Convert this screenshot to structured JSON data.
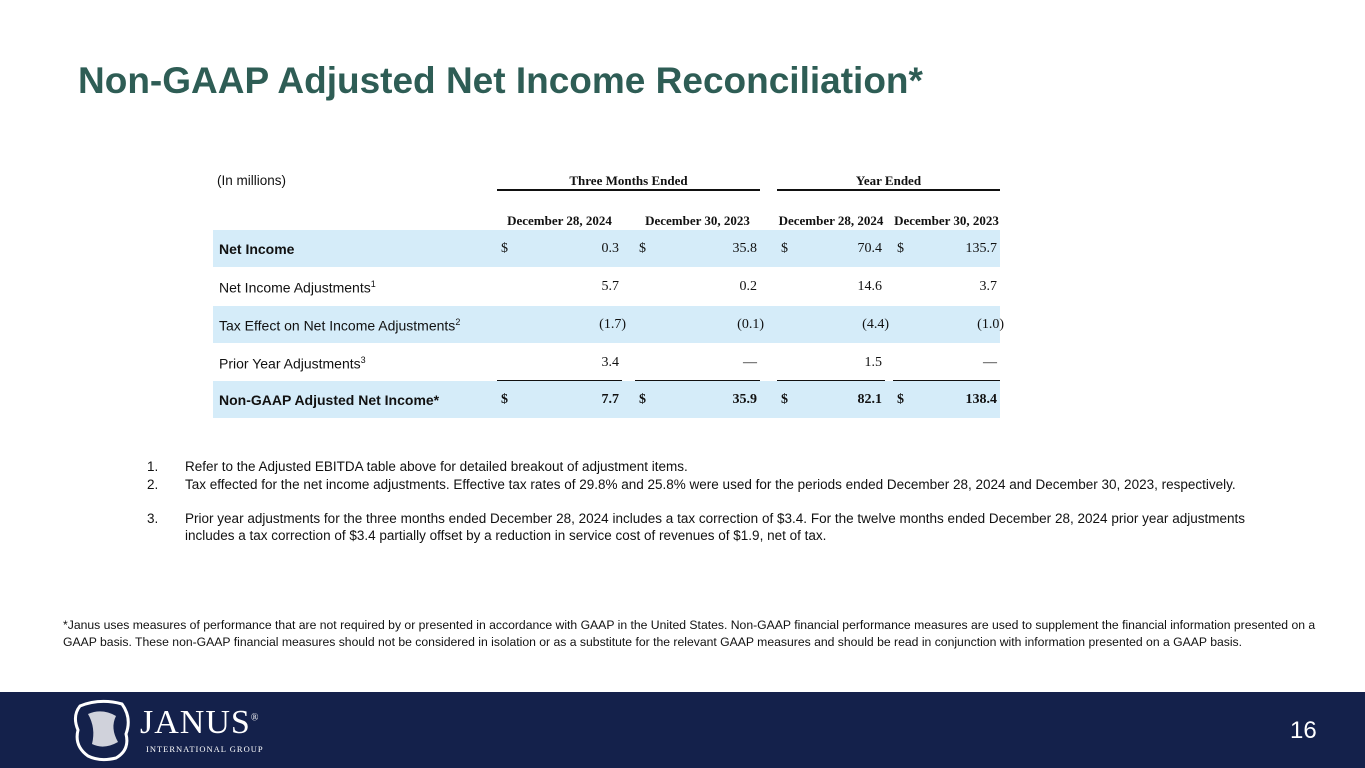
{
  "title": "Non-GAAP Adjusted Net Income Reconciliation*",
  "table": {
    "unit_label": "(In millions)",
    "groups": [
      "Three Months Ended",
      "Year Ended"
    ],
    "columns": [
      "December 28, 2024",
      "December 30, 2023",
      "December 28, 2024",
      "December 30, 2023"
    ],
    "rows": [
      {
        "label": "Net Income",
        "cells": [
          {
            "currency": "$",
            "value": "0.3"
          },
          {
            "currency": "$",
            "value": "35.8"
          },
          {
            "currency": "$",
            "value": "70.4"
          },
          {
            "currency": "$",
            "value": "135.7"
          }
        ]
      },
      {
        "label": "Net Income Adjustments",
        "note": "1",
        "cells": [
          {
            "value": "5.7"
          },
          {
            "value": "0.2"
          },
          {
            "value": "14.6"
          },
          {
            "value": "3.7"
          }
        ]
      },
      {
        "label": "Tax Effect on Net Income Adjustments",
        "note": "2",
        "cells": [
          {
            "value": "(1.7)"
          },
          {
            "value": "(0.1)"
          },
          {
            "value": "(4.4)"
          },
          {
            "value": "(1.0)"
          }
        ]
      },
      {
        "label": "Prior Year Adjustments",
        "note": "3",
        "cells": [
          {
            "value": "3.4"
          },
          {
            "value": "—"
          },
          {
            "value": "1.5"
          },
          {
            "value": "—"
          }
        ]
      },
      {
        "label": "Non-GAAP Adjusted Net Income*",
        "cells": [
          {
            "currency": "$",
            "value": "7.7"
          },
          {
            "currency": "$",
            "value": "35.9"
          },
          {
            "currency": "$",
            "value": "82.1"
          },
          {
            "currency": "$",
            "value": "138.4"
          }
        ]
      }
    ]
  },
  "footnotes": [
    {
      "marker": "1.",
      "text": "Refer to the Adjusted EBITDA table above for detailed breakout of adjustment items."
    },
    {
      "marker": "2.",
      "text": "Tax effected for the net income adjustments. Effective tax rates of 29.8% and 25.8% were used for the periods ended December 28, 2024 and December 30, 2023, respectively."
    },
    {
      "marker": "3.",
      "text": "Prior year adjustments for the three months ended December 28, 2024 includes a tax correction of $3.4.  For the twelve months ended  December 28, 2024 prior year adjustments includes a tax correction of $3.4 partially offset by a reduction in service cost of revenues of $1.9, net of tax."
    }
  ],
  "disclaimer": "*Janus uses measures of performance that are not required by or presented in accordance with GAAP in the United States. Non-GAAP financial performance measures are used to supplement the financial information presented on a GAAP basis. These non-GAAP financial measures should not be considered in isolation or as a substitute for the relevant GAAP measures and should be read in conjunction with information presented on a GAAP basis.",
  "footer": {
    "logo": {
      "name": "JANUS",
      "trademark": "®",
      "tagline": "INTERNATIONAL GROUP"
    },
    "page_number": "16"
  }
}
